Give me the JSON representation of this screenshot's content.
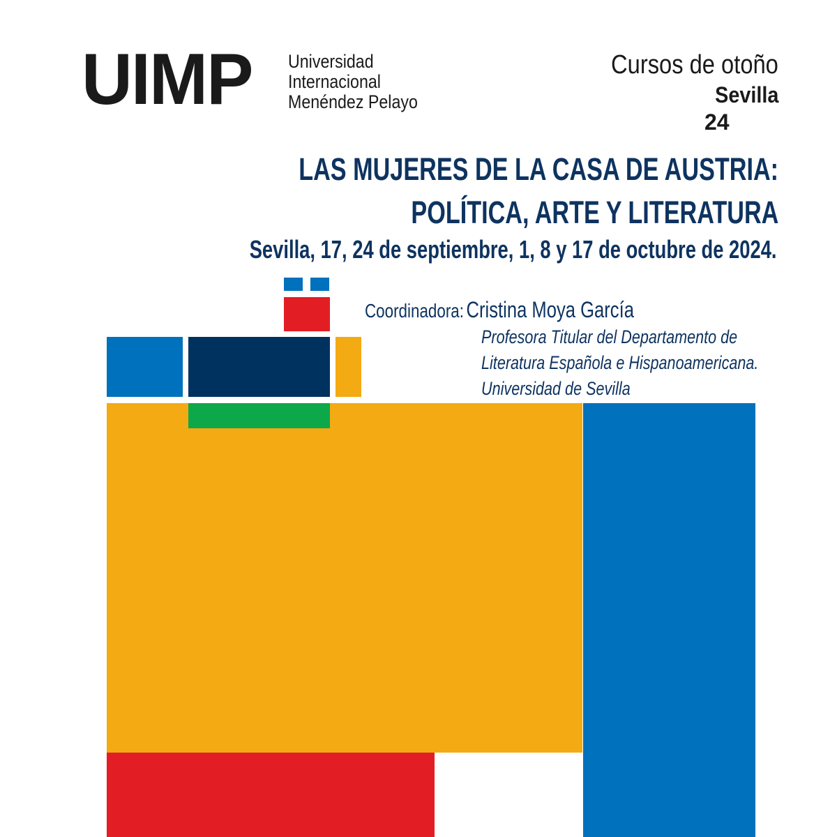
{
  "logo": {
    "mark": "UIMP",
    "lines": [
      "Universidad",
      "Internacional",
      "Menéndez Pelayo"
    ]
  },
  "series": {
    "label": "Cursos de otoño",
    "city": "Sevilla",
    "year": "24"
  },
  "course": {
    "title_line_1": "LAS MUJERES DE LA CASA DE AUSTRIA:",
    "title_line_2": "POLÍTICA, ARTE Y LITERATURA",
    "dates": "Sevilla, 17, 24 de septiembre, 1, 8 y 17 de octubre de 2024."
  },
  "coordinator": {
    "label": "Coordinadora:",
    "name": "Cristina Moya García",
    "affiliation": [
      "Profesora Titular del Departamento de",
      "Literatura Española e Hispanoamericana.",
      "Universidad de Sevilla"
    ]
  },
  "colors": {
    "title_blue": "#0e3360",
    "navy": "#00325f",
    "blue": "#0071bc",
    "yellow": "#f4aa12",
    "red": "#e31d24",
    "green": "#0ca84a",
    "text_dark": "#1a1a1a"
  }
}
